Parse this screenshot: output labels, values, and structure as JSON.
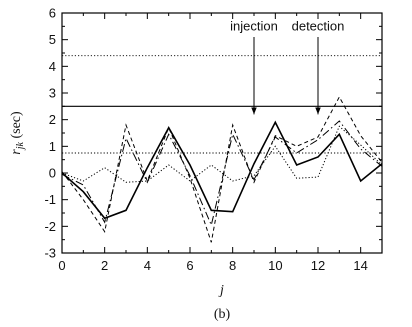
{
  "chart_data": {
    "type": "line",
    "title": "",
    "xlabel": "j",
    "ylabel": "r_jk (sec)",
    "ylabel_main": "r",
    "ylabel_sub": "jk",
    "ylabel_unit": " (sec)",
    "caption": "(b)",
    "xlim": [
      0,
      15
    ],
    "ylim": [
      -3,
      6
    ],
    "xticks": [
      0,
      2,
      4,
      6,
      8,
      10,
      12,
      14
    ],
    "yticks": [
      -3,
      -2,
      -1,
      0,
      1,
      2,
      3,
      4,
      5,
      6
    ],
    "grid": false,
    "legend": "none",
    "x": [
      0,
      1,
      2,
      3,
      4,
      5,
      6,
      7,
      8,
      9,
      10,
      11,
      12,
      13,
      14,
      15
    ],
    "series": [
      {
        "style": "solid",
        "values": [
          0,
          -0.7,
          -1.7,
          -1.4,
          0.2,
          1.7,
          0.3,
          -1.4,
          -1.45,
          0.35,
          1.9,
          0.3,
          0.6,
          1.45,
          -0.3,
          0.35
        ]
      },
      {
        "style": "dashed",
        "values": [
          0.05,
          -1.0,
          -2.2,
          1.8,
          -0.3,
          1.7,
          -0.2,
          -2.6,
          1.8,
          -0.35,
          1.4,
          1.0,
          1.35,
          2.85,
          1.4,
          0.4
        ]
      },
      {
        "style": "dotted",
        "values": [
          0,
          -0.3,
          0.2,
          -0.35,
          -0.3,
          0.3,
          -0.3,
          0.3,
          -0.3,
          -0.1,
          1.0,
          -0.2,
          -0.15,
          1.75,
          1.05,
          0.3
        ]
      },
      {
        "style": "dashdot",
        "values": [
          -0.05,
          -0.45,
          -1.85,
          1.3,
          -0.35,
          1.45,
          -0.1,
          -1.95,
          1.45,
          -0.25,
          1.35,
          0.75,
          1.25,
          1.95,
          0.9,
          0.25
        ]
      }
    ],
    "hlines": [
      {
        "y": 4.4,
        "style": "dotted"
      },
      {
        "y": 2.5,
        "style": "solid"
      },
      {
        "y": 0.75,
        "style": "dotted"
      }
    ],
    "annotations": [
      {
        "text": "injection",
        "x": 9
      },
      {
        "text": "detection",
        "x": 12
      }
    ]
  }
}
